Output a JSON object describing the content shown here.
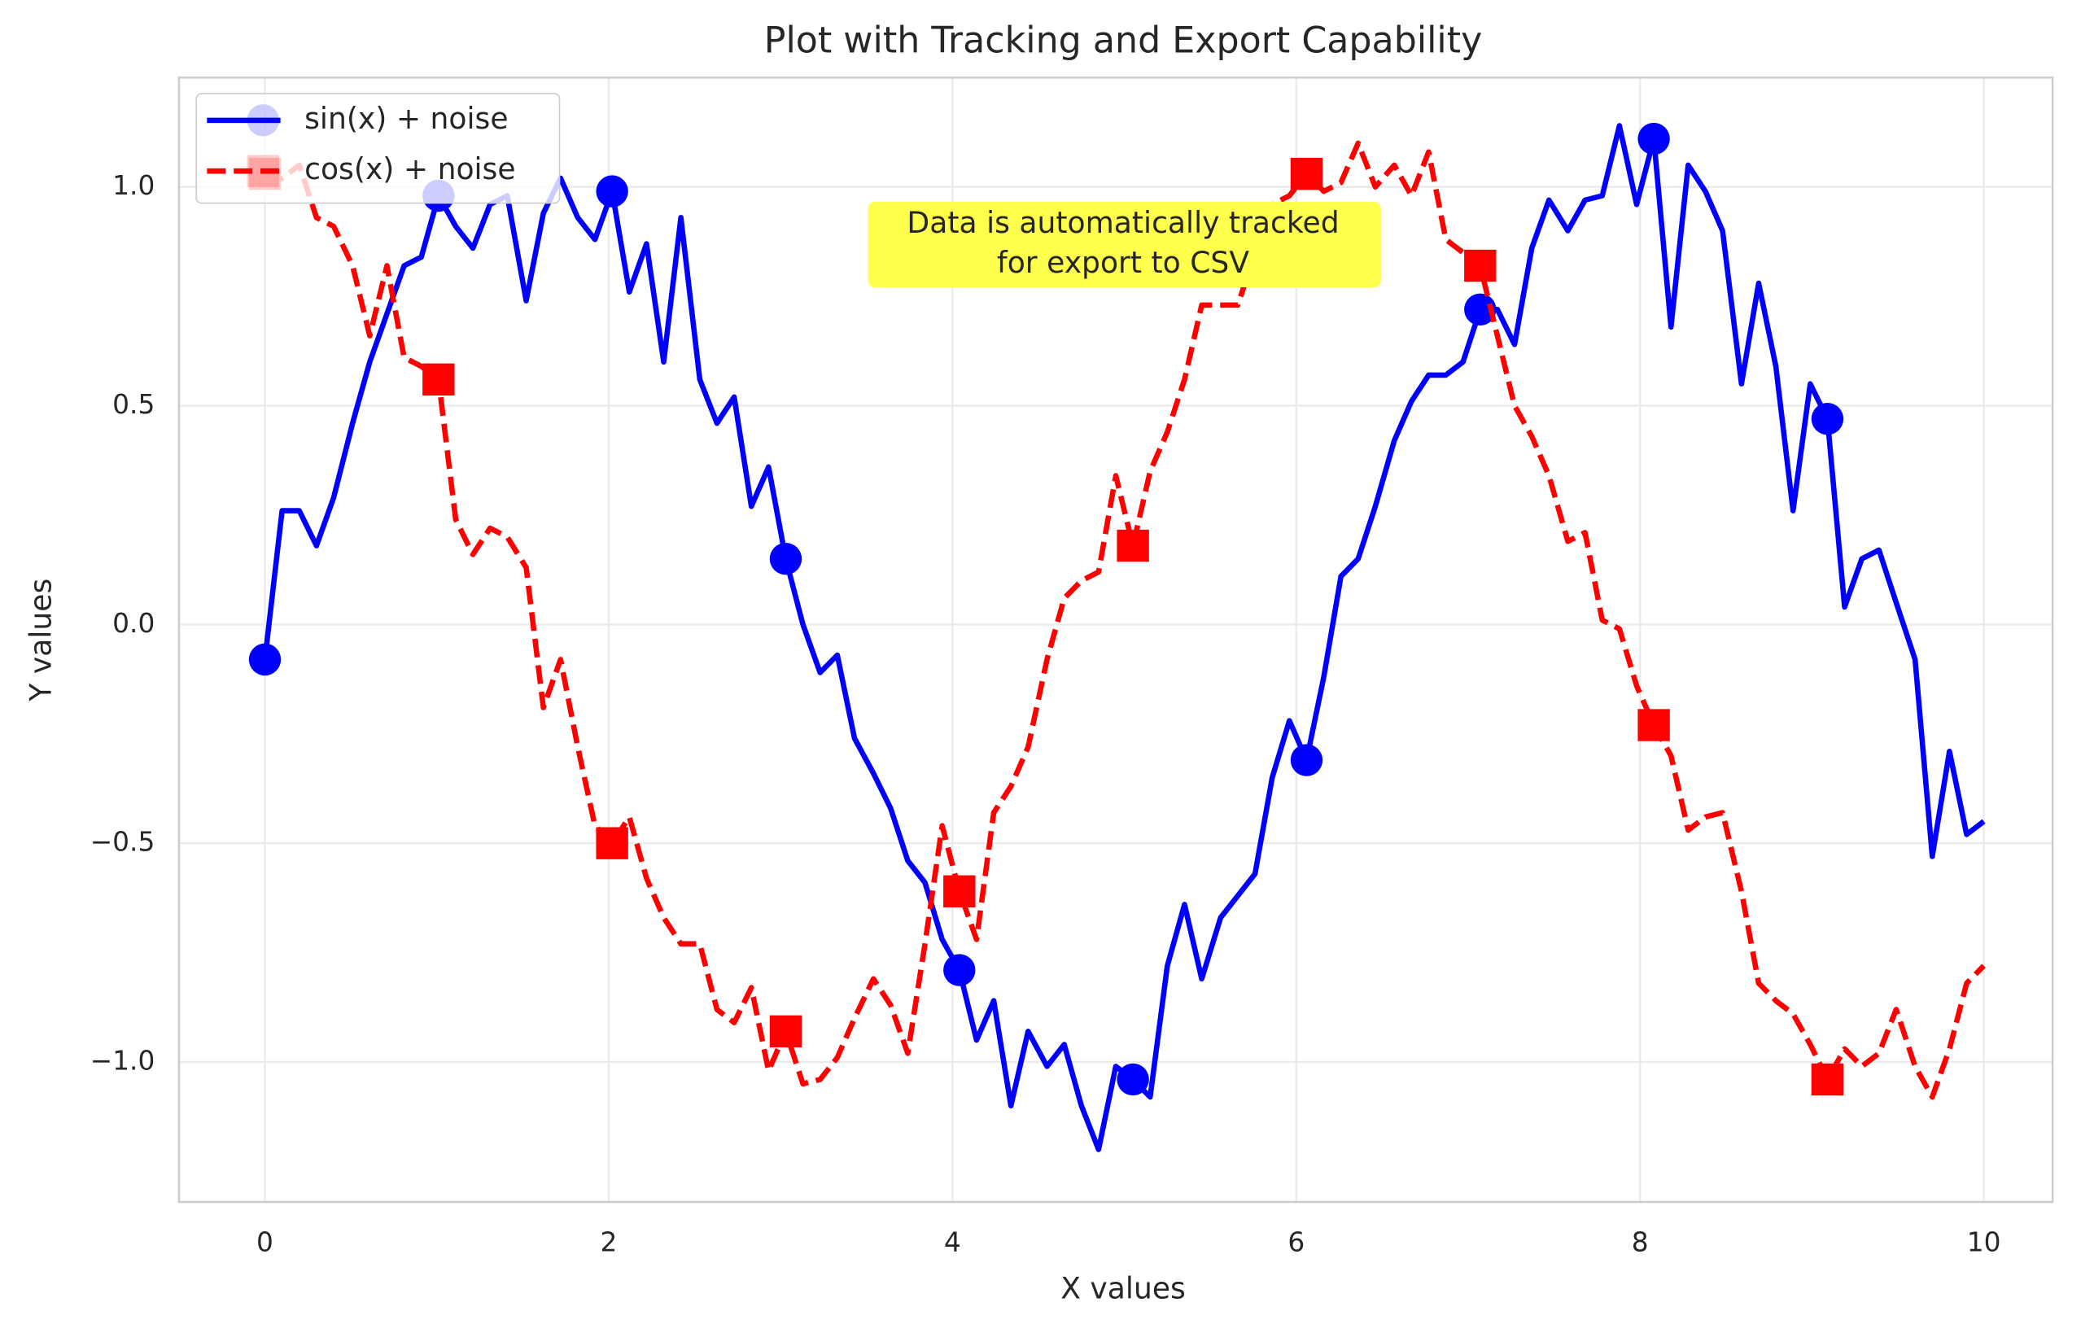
{
  "chart_data": {
    "type": "line",
    "title": "Plot with Tracking and Export Capability",
    "x_label": "X values",
    "y_label": "Y values",
    "annotation": [
      "Data is automatically tracked",
      "for export to CSV"
    ],
    "x": [
      0,
      0.1,
      0.2,
      0.3,
      0.4,
      0.51,
      0.61,
      0.71,
      0.81,
      0.91,
      1.01,
      1.11,
      1.21,
      1.31,
      1.41,
      1.52,
      1.62,
      1.72,
      1.82,
      1.92,
      2.02,
      2.12,
      2.22,
      2.32,
      2.42,
      2.53,
      2.63,
      2.73,
      2.83,
      2.93,
      3.03,
      3.13,
      3.23,
      3.33,
      3.43,
      3.54,
      3.64,
      3.74,
      3.84,
      3.94,
      4.04,
      4.14,
      4.24,
      4.34,
      4.44,
      4.55,
      4.65,
      4.75,
      4.85,
      4.95,
      5.05,
      5.15,
      5.25,
      5.35,
      5.45,
      5.56,
      5.66,
      5.76,
      5.86,
      5.96,
      6.06,
      6.16,
      6.26,
      6.36,
      6.46,
      6.57,
      6.67,
      6.77,
      6.87,
      6.97,
      7.07,
      7.17,
      7.27,
      7.37,
      7.47,
      7.58,
      7.68,
      7.78,
      7.88,
      7.98,
      8.08,
      8.18,
      8.28,
      8.38,
      8.48,
      8.59,
      8.69,
      8.79,
      8.89,
      8.99,
      9.09,
      9.19,
      9.29,
      9.39,
      9.49,
      9.6,
      9.7,
      9.8,
      9.9,
      10
    ],
    "series": [
      {
        "name": "sin(x) + noise",
        "color": "#0000ff",
        "linestyle": "solid",
        "marker": "circle",
        "markevery": 10,
        "values": [
          -0.08,
          0.26,
          0.26,
          0.18,
          0.29,
          0.46,
          0.6,
          0.71,
          0.82,
          0.84,
          0.98,
          0.91,
          0.86,
          0.96,
          0.98,
          0.74,
          0.94,
          1.02,
          0.93,
          0.88,
          0.99,
          0.76,
          0.87,
          0.6,
          0.93,
          0.56,
          0.46,
          0.52,
          0.27,
          0.36,
          0.15,
          0,
          -0.11,
          -0.07,
          -0.26,
          -0.34,
          -0.42,
          -0.54,
          -0.59,
          -0.72,
          -0.79,
          -0.95,
          -0.86,
          -1.1,
          -0.93,
          -1.01,
          -0.96,
          -1.1,
          -1.2,
          -1.01,
          -1.04,
          -1.08,
          -0.78,
          -0.64,
          -0.81,
          -0.67,
          -0.62,
          -0.57,
          -0.35,
          -0.22,
          -0.31,
          -0.12,
          0.11,
          0.15,
          0.27,
          0.42,
          0.51,
          0.57,
          0.57,
          0.6,
          0.72,
          0.72,
          0.64,
          0.86,
          0.97,
          0.9,
          0.97,
          0.98,
          1.14,
          0.96,
          1.11,
          0.68,
          1.05,
          0.99,
          0.9,
          0.55,
          0.78,
          0.59,
          0.26,
          0.55,
          0.47,
          0.04,
          0.15,
          0.17,
          0.05,
          -0.08,
          -0.53,
          -0.29,
          -0.48,
          -0.45
        ]
      },
      {
        "name": "cos(x) + noise",
        "color": "#ff0000",
        "linestyle": "dashed",
        "marker": "square",
        "markevery": 10,
        "values": [
          1.03,
          1.02,
          1.05,
          0.93,
          0.91,
          0.82,
          0.66,
          0.82,
          0.61,
          0.59,
          0.56,
          0.24,
          0.16,
          0.22,
          0.2,
          0.13,
          -0.19,
          -0.08,
          -0.28,
          -0.46,
          -0.5,
          -0.44,
          -0.58,
          -0.67,
          -0.73,
          -0.73,
          -0.88,
          -0.91,
          -0.83,
          -1.02,
          -0.93,
          -1.05,
          -1.04,
          -0.99,
          -0.9,
          -0.81,
          -0.87,
          -0.98,
          -0.73,
          -0.46,
          -0.61,
          -0.72,
          -0.43,
          -0.37,
          -0.28,
          -0.08,
          0.06,
          0.1,
          0.12,
          0.34,
          0.18,
          0.35,
          0.44,
          0.56,
          0.73,
          0.73,
          0.73,
          0.85,
          0.96,
          0.98,
          1.03,
          0.99,
          1.01,
          1.1,
          1,
          1.05,
          0.98,
          1.08,
          0.88,
          0.85,
          0.82,
          0.66,
          0.5,
          0.43,
          0.34,
          0.19,
          0.21,
          0.01,
          -0.01,
          -0.14,
          -0.23,
          -0.3,
          -0.47,
          -0.44,
          -0.43,
          -0.61,
          -0.82,
          -0.86,
          -0.89,
          -0.96,
          -1.04,
          -0.97,
          -1.01,
          -0.98,
          -0.88,
          -1.01,
          -1.08,
          -0.97,
          -0.82,
          -0.78
        ]
      }
    ],
    "xlim": [
      -0.5,
      10.4
    ],
    "ylim": [
      -1.32,
      1.25
    ],
    "xticks": [
      0,
      2,
      4,
      6,
      8,
      10
    ],
    "yticks": [
      {
        "value": -1.0,
        "label": "−1.0"
      },
      {
        "value": -0.5,
        "label": "−0.5"
      },
      {
        "value": 0.0,
        "label": "0.0"
      },
      0.5,
      {
        "value": 1.0,
        "label": "1.0"
      }
    ],
    "grid": true,
    "legend": "upper left"
  }
}
